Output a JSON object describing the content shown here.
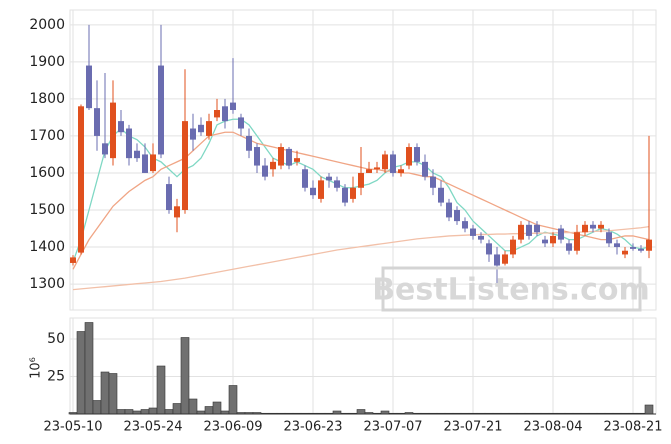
{
  "chart_data": [
    {
      "type": "candlestick",
      "up_color": "#e0501e",
      "down_color": "#6a6cb0",
      "open": [
        1357,
        1385,
        1890,
        1775,
        1680,
        1640,
        1740,
        1720,
        1660,
        1650,
        1605,
        1890,
        1570,
        1480,
        1500,
        1720,
        1730,
        1700,
        1750,
        1780,
        1790,
        1750,
        1700,
        1670,
        1620,
        1610,
        1620,
        1665,
        1630,
        1610,
        1560,
        1530,
        1590,
        1580,
        1560,
        1530,
        1560,
        1600,
        1610,
        1610,
        1650,
        1600,
        1620,
        1670,
        1630,
        1590,
        1560,
        1520,
        1500,
        1470,
        1450,
        1430,
        1410,
        1380,
        1355,
        1380,
        1420,
        1460,
        1460,
        1420,
        1410,
        1450,
        1410,
        1390,
        1440,
        1460,
        1450,
        1440,
        1410,
        1380,
        1400,
        1395,
        1390
      ],
      "high": [
        1378,
        1785,
        2000,
        1850,
        1870,
        1850,
        1770,
        1730,
        1680,
        1680,
        1680,
        2000,
        1590,
        1530,
        1880,
        1760,
        1750,
        1760,
        1800,
        1800,
        1910,
        1760,
        1720,
        1680,
        1640,
        1640,
        1680,
        1670,
        1660,
        1620,
        1580,
        1590,
        1600,
        1590,
        1570,
        1590,
        1670,
        1630,
        1630,
        1660,
        1660,
        1620,
        1680,
        1680,
        1650,
        1610,
        1580,
        1530,
        1510,
        1480,
        1460,
        1440,
        1420,
        1400,
        1390,
        1430,
        1470,
        1470,
        1470,
        1430,
        1440,
        1460,
        1420,
        1460,
        1470,
        1470,
        1470,
        1450,
        1420,
        1400,
        1410,
        1405,
        1700
      ],
      "low": [
        1350,
        1380,
        1770,
        1660,
        1640,
        1620,
        1700,
        1620,
        1630,
        1600,
        1600,
        1640,
        1490,
        1440,
        1490,
        1660,
        1700,
        1690,
        1740,
        1720,
        1760,
        1700,
        1640,
        1600,
        1580,
        1590,
        1610,
        1610,
        1620,
        1550,
        1530,
        1520,
        1560,
        1550,
        1510,
        1520,
        1540,
        1600,
        1600,
        1600,
        1590,
        1590,
        1610,
        1620,
        1580,
        1540,
        1510,
        1470,
        1460,
        1440,
        1420,
        1410,
        1360,
        1300,
        1350,
        1370,
        1410,
        1420,
        1430,
        1400,
        1400,
        1410,
        1380,
        1380,
        1430,
        1440,
        1440,
        1400,
        1380,
        1370,
        1390,
        1385,
        1370
      ],
      "close": [
        1372,
        1780,
        1775,
        1700,
        1650,
        1790,
        1710,
        1640,
        1640,
        1600,
        1650,
        1650,
        1500,
        1510,
        1740,
        1690,
        1710,
        1740,
        1770,
        1740,
        1770,
        1720,
        1660,
        1620,
        1590,
        1630,
        1670,
        1620,
        1640,
        1560,
        1540,
        1580,
        1580,
        1560,
        1520,
        1560,
        1600,
        1610,
        1615,
        1650,
        1600,
        1610,
        1670,
        1630,
        1590,
        1560,
        1520,
        1480,
        1470,
        1450,
        1430,
        1420,
        1380,
        1350,
        1380,
        1420,
        1460,
        1430,
        1440,
        1410,
        1430,
        1420,
        1390,
        1440,
        1460,
        1450,
        1460,
        1410,
        1400,
        1390,
        1395,
        1390,
        1420
      ],
      "lines": [
        {
          "color": "#7fd8c4",
          "values": [
            1360,
            1420,
            1500,
            1580,
            1660,
            1700,
            1720,
            1700,
            1690,
            1670,
            1640,
            1630,
            1610,
            1590,
            1610,
            1620,
            1640,
            1680,
            1730,
            1740,
            1745,
            1745,
            1730,
            1700,
            1670,
            1640,
            1630,
            1620,
            1630,
            1620,
            1610,
            1590,
            1580,
            1570,
            1560,
            1560,
            1565,
            1570,
            1580,
            1600,
            1615,
            1620,
            1630,
            1630,
            1620,
            1600,
            1590,
            1560,
            1520,
            1500,
            1470,
            1450,
            1430,
            1410,
            1390,
            1390,
            1400,
            1410,
            1430,
            1440,
            1435,
            1430,
            1420,
            1420,
            1430,
            1440,
            1450,
            1445,
            1435,
            1420,
            1400,
            1395,
            1400
          ]
        },
        {
          "color": "#f0a585",
          "values": [
            1340,
            1380,
            1420,
            1450,
            1480,
            1510,
            1530,
            1550,
            1565,
            1580,
            1590,
            1610,
            1620,
            1630,
            1640,
            1660,
            1680,
            1700,
            1705,
            1710,
            1710,
            1700,
            1690,
            1680,
            1675,
            1670,
            1665,
            1660,
            1655,
            1650,
            1645,
            1640,
            1635,
            1630,
            1625,
            1620,
            1615,
            1610,
            1610,
            1605,
            1605,
            1600,
            1600,
            1595,
            1590,
            1590,
            1580,
            1570,
            1560,
            1550,
            1540,
            1530,
            1520,
            1510,
            1500,
            1490,
            1480,
            1470,
            1460,
            1455,
            1450,
            1445,
            1440,
            1435,
            1430,
            1425,
            1420,
            1420,
            1425,
            1430,
            1430,
            1425,
            1420
          ]
        },
        {
          "color": "#f2c0a8",
          "values": [
            1285,
            1287,
            1289,
            1291,
            1293,
            1295,
            1297,
            1299,
            1301,
            1303,
            1305,
            1307,
            1310,
            1313,
            1316,
            1320,
            1324,
            1328,
            1332,
            1336,
            1340,
            1344,
            1348,
            1352,
            1356,
            1360,
            1364,
            1368,
            1372,
            1376,
            1380,
            1384,
            1388,
            1392,
            1395,
            1398,
            1401,
            1404,
            1407,
            1410,
            1413,
            1416,
            1419,
            1422,
            1424,
            1426,
            1428,
            1430,
            1431,
            1432,
            1433,
            1434,
            1434,
            1435,
            1435,
            1436,
            1436,
            1437,
            1437,
            1438,
            1438,
            1439,
            1439,
            1440,
            1441,
            1442,
            1443,
            1444,
            1446,
            1448,
            1450,
            1452,
            1455
          ]
        }
      ],
      "ylim": [
        1230,
        2040
      ],
      "yticks": [
        1300,
        1400,
        1500,
        1600,
        1700,
        1800,
        1900,
        2000
      ],
      "grid": true,
      "watermark": "BestListens.com"
    },
    {
      "type": "bar",
      "color": "#707070",
      "ylabel": "10⁶",
      "categories": [
        "23-05-10",
        null,
        null,
        null,
        null,
        null,
        null,
        null,
        null,
        null,
        "23-05-24",
        null,
        null,
        null,
        null,
        null,
        null,
        null,
        null,
        null,
        "23-06-09",
        null,
        null,
        null,
        null,
        null,
        null,
        null,
        null,
        null,
        "23-06-23",
        null,
        null,
        null,
        null,
        null,
        null,
        null,
        null,
        null,
        "23-07-07",
        null,
        null,
        null,
        null,
        null,
        null,
        null,
        null,
        null,
        "23-07-21",
        null,
        null,
        null,
        null,
        null,
        null,
        null,
        null,
        null,
        "23-08-04",
        null,
        null,
        null,
        null,
        null,
        null,
        null,
        null,
        null,
        "23-08-21",
        null,
        null
      ],
      "values": [
        1,
        55,
        61,
        9,
        28,
        27,
        3,
        3,
        2,
        3,
        4,
        32,
        3,
        7,
        51,
        10,
        2,
        5,
        8,
        2,
        19,
        1,
        1,
        1,
        0.5,
        0.5,
        0.5,
        0.5,
        0.5,
        0.5,
        0.5,
        0.5,
        0.5,
        2,
        0.5,
        0.5,
        3,
        1,
        0.5,
        2,
        0.5,
        0.5,
        1,
        0.5,
        0.5,
        0.5,
        0.5,
        0.5,
        0.5,
        0.5,
        0.5,
        0.5,
        0.5,
        0.5,
        0.5,
        0.5,
        0.5,
        0.5,
        0.5,
        0.5,
        0.5,
        0.5,
        0.5,
        0.5,
        0.5,
        0.5,
        0.5,
        0.5,
        0.5,
        0.5,
        0.5,
        0.5,
        6
      ],
      "ylim": [
        0,
        64
      ],
      "yticks": [
        25,
        50
      ],
      "grid": true
    }
  ]
}
